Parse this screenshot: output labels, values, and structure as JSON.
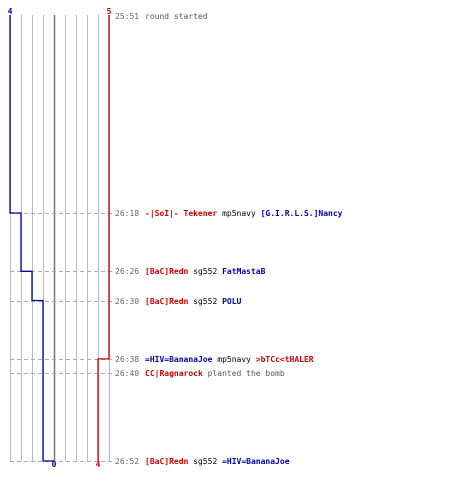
{
  "colors": {
    "team_blue": "#0000aa",
    "team_red": "#cc0000",
    "time": "#666666",
    "neutral_text": "#555555",
    "grid": "#bbbbbb",
    "center_line": "#777777",
    "dashes": "#aaaaaa"
  },
  "chart_data": {
    "type": "line",
    "x_axis": {
      "ticks": [
        "4",
        "0",
        "4"
      ]
    },
    "y_axis": {
      "range_seconds": [
        "25:51",
        "26:52"
      ]
    },
    "series": [
      {
        "name": "",
        "color": "#0000aa",
        "start_count": 4,
        "label_top": "4",
        "label_bottom": "0",
        "steps": [
          {
            "time": "25:51",
            "value": 4
          },
          {
            "time": "26:18",
            "value": 3
          },
          {
            "time": "26:26",
            "value": 2
          },
          {
            "time": "26:30",
            "value": 1
          },
          {
            "time": "26:52",
            "value": 0
          }
        ]
      },
      {
        "name": "",
        "color": "#cc0000",
        "start_count": 5,
        "label_top": "5",
        "label_bottom": "4",
        "steps": [
          {
            "time": "25:51",
            "value": 5
          },
          {
            "time": "26:38",
            "value": 4
          }
        ]
      }
    ],
    "events": [
      {
        "time": "25:51",
        "parts": [
          {
            "text": "round started",
            "color": "#555555"
          }
        ]
      },
      {
        "time": "26:18",
        "parts": [
          {
            "text": "-|SoI|- Tekener",
            "color": "#cc0000",
            "bold": true
          },
          {
            "text": " mp5navy ",
            "color": "#000000"
          },
          {
            "text": "[G.I.R.L.S.]Nancy",
            "color": "#0000aa",
            "bold": true
          }
        ]
      },
      {
        "time": "26:26",
        "parts": [
          {
            "text": "[BaC]Redn",
            "color": "#cc0000",
            "bold": true
          },
          {
            "text": " sg552 ",
            "color": "#000000"
          },
          {
            "text": "FatMastaB",
            "color": "#0000aa",
            "bold": true
          }
        ]
      },
      {
        "time": "26:30",
        "parts": [
          {
            "text": "[BaC]Redn",
            "color": "#cc0000",
            "bold": true
          },
          {
            "text": " sg552 ",
            "color": "#000000"
          },
          {
            "text": "POLU",
            "color": "#0000aa",
            "bold": true
          }
        ]
      },
      {
        "time": "26:38",
        "parts": [
          {
            "text": "=HIV=BananaJoe",
            "color": "#0000aa",
            "bold": true
          },
          {
            "text": " mp5navy ",
            "color": "#000000"
          },
          {
            "text": ">bTCc<tHALER",
            "color": "#cc0000",
            "bold": true
          }
        ]
      },
      {
        "time": "26:40",
        "parts": [
          {
            "text": "CC|Ragnarock",
            "color": "#cc0000",
            "bold": true
          },
          {
            "text": " planted the bomb",
            "color": "#555555"
          }
        ]
      },
      {
        "time": "26:52",
        "parts": [
          {
            "text": "[BaC]Redn",
            "color": "#cc0000",
            "bold": true
          },
          {
            "text": " sg552 ",
            "color": "#000000"
          },
          {
            "text": "=HIV=BananaJoe",
            "color": "#0000aa",
            "bold": true
          }
        ]
      }
    ]
  }
}
